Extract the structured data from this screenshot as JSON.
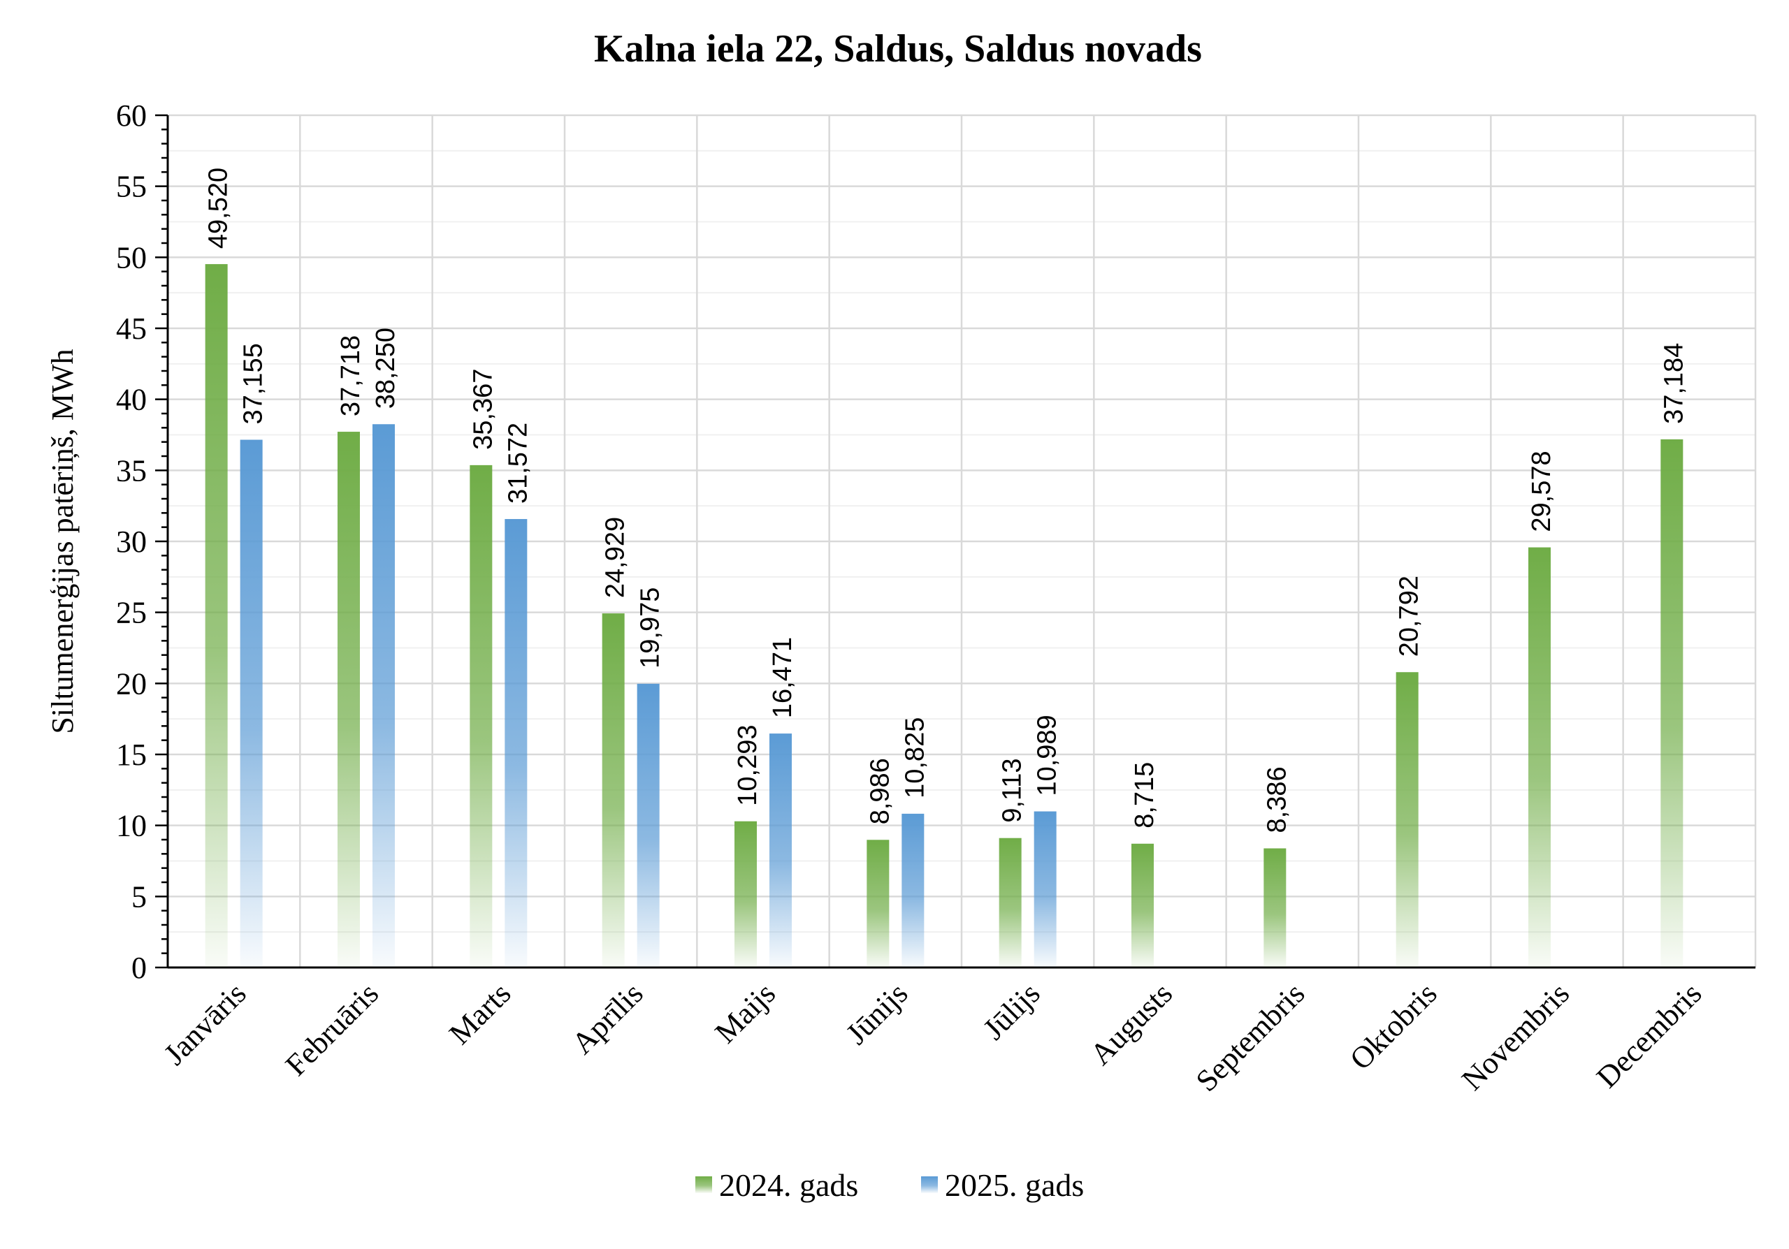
{
  "chart_data": {
    "type": "bar",
    "title": "Kalna iela 22, Saldus, Saldus novads",
    "ylabel": "Siltumenerģijas patēriņš, MWh",
    "xlabel": "",
    "ylim": [
      0,
      60
    ],
    "yticks": [
      0,
      5,
      10,
      15,
      20,
      25,
      30,
      35,
      40,
      45,
      50,
      55,
      60
    ],
    "grid": true,
    "legend_position": "bottom",
    "categories": [
      "Janvāris",
      "Februāris",
      "Marts",
      "Aprīlis",
      "Maijs",
      "Jūnijs",
      "Jūlijs",
      "Augusts",
      "Septembris",
      "Oktobris",
      "Novembris",
      "Decembris"
    ],
    "series": [
      {
        "name": "2024. gads",
        "color": "#70AD47",
        "values": [
          49.52,
          37.718,
          35.367,
          24.929,
          10.293,
          8.986,
          9.113,
          8.715,
          8.386,
          20.792,
          29.578,
          37.184
        ],
        "labels": [
          "49,520",
          "37,718",
          "35,367",
          "24,929",
          "10,293",
          "8,986",
          "9,113",
          "8,715",
          "8,386",
          "20,792",
          "29,578",
          "37,184"
        ]
      },
      {
        "name": "2025. gads",
        "color": "#5B9BD5",
        "values": [
          37.155,
          38.25,
          31.572,
          19.975,
          16.471,
          10.825,
          10.989,
          null,
          null,
          null,
          null,
          null
        ],
        "labels": [
          "37,155",
          "38,250",
          "31,572",
          "19,975",
          "16,471",
          "10,825",
          "10,989",
          null,
          null,
          null,
          null,
          null
        ]
      }
    ]
  }
}
